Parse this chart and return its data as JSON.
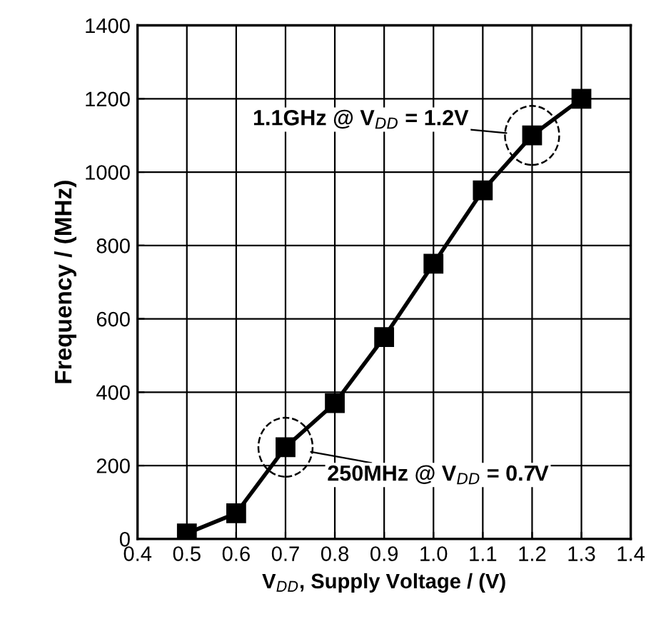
{
  "chart_data": {
    "type": "line",
    "xlabel": "V$_{DD}$, Supply Voltage / (V)",
    "ylabel": "Frequency / (MHz)",
    "x": [
      0.5,
      0.6,
      0.7,
      0.8,
      0.9,
      1.0,
      1.1,
      1.2,
      1.3
    ],
    "series": [
      {
        "color": "#000000",
        "values": [
          15,
          70,
          250,
          370,
          550,
          750,
          950,
          1100,
          1200
        ]
      }
    ],
    "xlim": [
      0.4,
      1.4
    ],
    "xticks": [
      0.4,
      0.5,
      0.6,
      0.7,
      0.8,
      0.9,
      {
        "value": 1.0,
        "label": "1.0"
      },
      1.1,
      1.2,
      1.3,
      1.4
    ],
    "ylim": [
      0,
      1400
    ],
    "yticks": [
      0,
      200,
      400,
      600,
      800,
      1000,
      1200,
      1400
    ],
    "grid": true,
    "marker": "square",
    "line_style": "solid",
    "annotations": [
      {
        "text": "1.1GHz @ V$_{DD}$ = 1.2V",
        "x": 1.2,
        "y": 1100
      },
      {
        "text": "250MHz @ V$_{DD}$ = 0.7V",
        "x": 0.7,
        "y": 250
      }
    ]
  }
}
